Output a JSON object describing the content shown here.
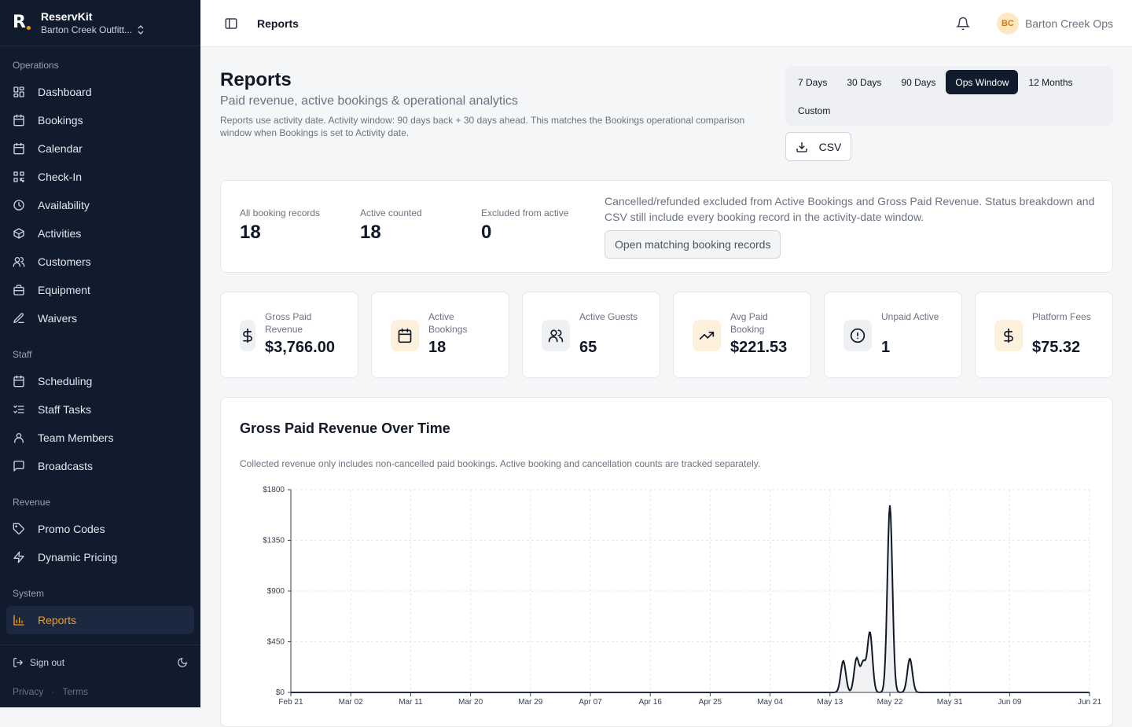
{
  "app": {
    "name": "ReservKit",
    "org": "Barton Creek Outfitt...",
    "logo_letter": "R"
  },
  "sidebar": {
    "sections": [
      {
        "title": "Operations",
        "items": [
          {
            "label": "Dashboard",
            "icon": "dashboard-icon"
          },
          {
            "label": "Bookings",
            "icon": "calendar-icon"
          },
          {
            "label": "Calendar",
            "icon": "calendar-icon"
          },
          {
            "label": "Check-In",
            "icon": "qr-code-icon"
          },
          {
            "label": "Availability",
            "icon": "clock-icon"
          },
          {
            "label": "Activities",
            "icon": "package-icon"
          },
          {
            "label": "Customers",
            "icon": "users-icon"
          },
          {
            "label": "Equipment",
            "icon": "briefcase-icon"
          },
          {
            "label": "Waivers",
            "icon": "edit-icon"
          }
        ]
      },
      {
        "title": "Staff",
        "items": [
          {
            "label": "Scheduling",
            "icon": "calendar-icon"
          },
          {
            "label": "Staff Tasks",
            "icon": "list-checks-icon"
          },
          {
            "label": "Team Members",
            "icon": "user-icon"
          },
          {
            "label": "Broadcasts",
            "icon": "message-icon"
          }
        ]
      },
      {
        "title": "Revenue",
        "items": [
          {
            "label": "Promo Codes",
            "icon": "tag-icon"
          },
          {
            "label": "Dynamic Pricing",
            "icon": "zap-icon"
          }
        ]
      },
      {
        "title": "System",
        "items": [
          {
            "label": "Reports",
            "icon": "bar-chart-icon",
            "active": true
          }
        ]
      }
    ],
    "sign_out": "Sign out",
    "privacy": "Privacy",
    "terms": "Terms"
  },
  "topbar": {
    "breadcrumb": "Reports",
    "user_initials": "BC",
    "user_name": "Barton Creek Ops"
  },
  "page": {
    "title": "Reports",
    "subtitle": "Paid revenue, active bookings & operational analytics",
    "description": "Reports use activity date. Activity window: 90 days back + 30 days ahead. This matches the Bookings operational comparison window when Bookings is set to Activity date.",
    "ranges": [
      "7 Days",
      "30 Days",
      "90 Days",
      "Ops Window",
      "12 Months",
      "Custom"
    ],
    "selected_range": "Ops Window",
    "csv_label": "CSV"
  },
  "summary": {
    "all_label": "All booking records",
    "all_value": "18",
    "active_label": "Active counted",
    "active_value": "18",
    "excluded_label": "Excluded from active",
    "excluded_value": "0",
    "note": "Cancelled/refunded excluded from Active Bookings and Gross Paid Revenue. Status breakdown and CSV still include every booking record in the activity-date window.",
    "open_button": "Open matching booking records"
  },
  "kpis": [
    {
      "label": "Gross Paid Revenue",
      "value": "$3,766.00",
      "icon": "dollar-icon",
      "bg": "#eef0f3",
      "fg": "#111827"
    },
    {
      "label": "Active Bookings",
      "value": "18",
      "icon": "calendar-icon",
      "bg": "#fdf1dc",
      "fg": "#111827"
    },
    {
      "label": "Active Guests",
      "value": "65",
      "icon": "users-icon",
      "bg": "#eef0f3",
      "fg": "#111827"
    },
    {
      "label": "Avg Paid Booking",
      "value": "$221.53",
      "icon": "trending-up-icon",
      "bg": "#fdf1dc",
      "fg": "#111827"
    },
    {
      "label": "Unpaid Active",
      "value": "1",
      "icon": "alert-circle-icon",
      "bg": "#eef0f3",
      "fg": "#111827"
    },
    {
      "label": "Platform Fees",
      "value": "$75.32",
      "icon": "dollar-icon",
      "bg": "#fdf1dc",
      "fg": "#111827"
    }
  ],
  "chart_section": {
    "title": "Gross Paid Revenue Over Time",
    "subtitle": "Collected revenue only includes non-cancelled paid bookings. Active booking and cancellation counts are tracked separately."
  },
  "chart_data": {
    "type": "area",
    "title": "Gross Paid Revenue Over Time",
    "ylim": [
      0,
      1800
    ],
    "y_ticks": [
      "$0",
      "$450",
      "$900",
      "$1350",
      "$1800"
    ],
    "x_ticks": [
      "Feb 21",
      "Mar 02",
      "Mar 11",
      "Mar 20",
      "Mar 29",
      "Apr 07",
      "Apr 16",
      "Apr 25",
      "May 04",
      "May 13",
      "May 22",
      "May 31",
      "Jun 09",
      "Jun 21"
    ],
    "grid": true,
    "series": [
      {
        "points": [
          {
            "x": "May 15",
            "y": 280
          },
          {
            "x": "May 17",
            "y": 300
          },
          {
            "x": "May 18",
            "y": 260
          },
          {
            "x": "May 19",
            "y": 530
          },
          {
            "x": "May 22",
            "y": 1660
          },
          {
            "x": "May 25",
            "y": 300
          }
        ]
      }
    ],
    "colors": {
      "line": "#111827",
      "fill": "#e5e7eb"
    }
  }
}
